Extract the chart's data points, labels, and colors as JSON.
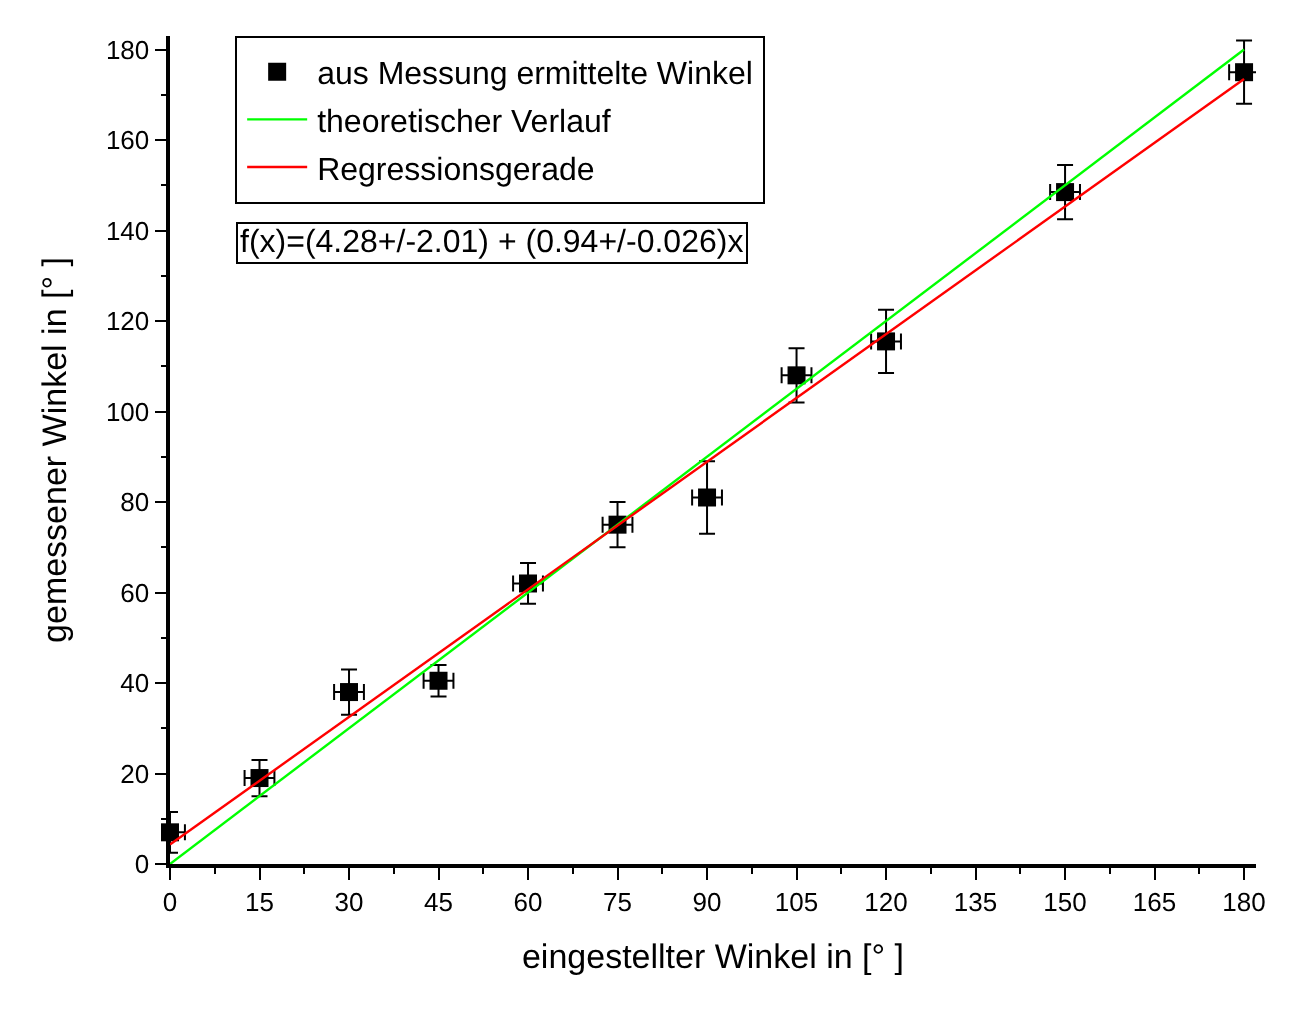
{
  "chart_data": {
    "type": "scatter",
    "xlabel": "eingestellter Winkel in [° ]",
    "ylabel": "gemessener Winkel in [° ]",
    "xlim": [
      0,
      182
    ],
    "ylim": [
      0,
      183
    ],
    "xticks": [
      0,
      15,
      30,
      45,
      60,
      75,
      90,
      105,
      120,
      135,
      150,
      165,
      180
    ],
    "yticks": [
      0,
      20,
      40,
      60,
      80,
      100,
      120,
      140,
      160,
      180
    ],
    "legend": "top left",
    "annotations": [
      "f(x)=(4.28+/-2.01) + (0.94+/-0.026)x"
    ],
    "series": [
      {
        "name": "aus Messung ermittelte Winkel",
        "marker": "square",
        "color": "#000000",
        "x": [
          0,
          15,
          30,
          45,
          60,
          75,
          90,
          105,
          120,
          150,
          180
        ],
        "values": [
          7,
          19,
          38,
          40.5,
          62,
          75,
          81,
          108,
          115.5,
          148.5,
          175
        ],
        "errors": [
          4.5,
          4,
          5,
          3.5,
          4.5,
          5,
          8,
          6,
          7,
          6,
          7
        ],
        "xerrors": [
          2.5,
          2.5,
          2.5,
          2.5,
          2.5,
          2.5,
          2.5,
          2.5,
          2.5,
          2.5,
          2.5
        ]
      },
      {
        "name": "theoretischer Verlauf",
        "type": "line",
        "color": "#00ff00",
        "x": [
          0,
          180
        ],
        "values": [
          0,
          180
        ]
      },
      {
        "name": "Regressionsgerade",
        "type": "line",
        "color": "#ff0000",
        "x": [
          0,
          180
        ],
        "values": [
          4.3,
          173.5
        ]
      }
    ]
  }
}
